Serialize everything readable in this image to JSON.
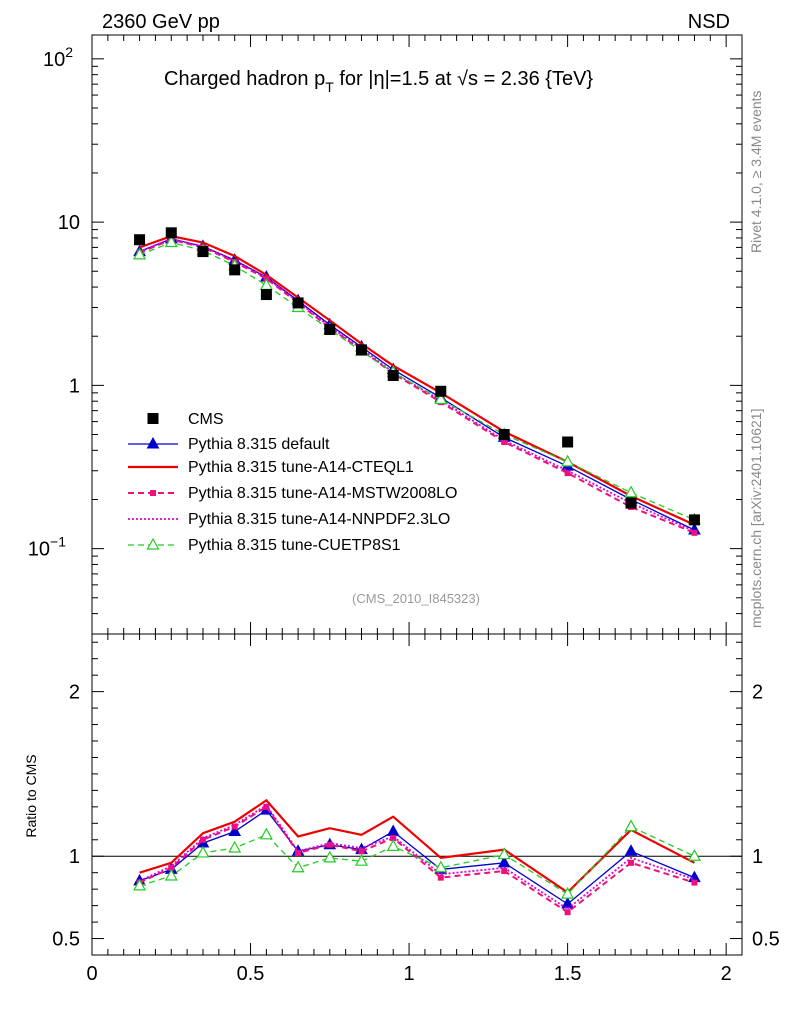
{
  "header": {
    "left": "2360 GeV pp",
    "right": "NSD"
  },
  "side_labels": {
    "rivet": "Rivet 4.1.0, ≥ 3.4M events",
    "mcplots": "mcplots.cern.ch [arXiv:2401.10621]"
  },
  "colors": {
    "data": "#000000",
    "default": "#0000cc",
    "cteql1": "#ee0000",
    "mstw": "#ee1177",
    "nnpdf": "#dd00dd",
    "cuetp8s1": "#22cc22"
  },
  "chart_data": {
    "type": "line",
    "title_parts": [
      "Charged hadron p",
      "T",
      " for |η|=1.5 at √s = 2.36 {TeV}"
    ],
    "analysis_id": "(CMS_2010_I845323)",
    "ylabel_ratio": "Ratio to CMS",
    "x": [
      0.15,
      0.25,
      0.35,
      0.45,
      0.55,
      0.65,
      0.75,
      0.85,
      0.95,
      1.1,
      1.3,
      1.5,
      1.7,
      1.9
    ],
    "xlim": [
      0,
      2.05
    ],
    "ylim_main": [
      0.03,
      140
    ],
    "ylim_ratio": [
      0.4,
      2.35
    ],
    "x_ticks": [
      {
        "v": 0,
        "label": "0"
      },
      {
        "v": 0.5,
        "label": "0.5"
      },
      {
        "v": 1,
        "label": "1"
      },
      {
        "v": 1.5,
        "label": "1.5"
      },
      {
        "v": 2,
        "label": "2"
      }
    ],
    "y_ticks_main": [
      {
        "v": 0.1,
        "base": "10",
        "exp": "−1"
      },
      {
        "v": 1,
        "base": "1",
        "exp": ""
      },
      {
        "v": 10,
        "base": "10",
        "exp": ""
      },
      {
        "v": 100,
        "base": "10",
        "exp": "2"
      }
    ],
    "y_ticks_ratio": [
      {
        "v": 0.5,
        "label": "0.5"
      },
      {
        "v": 1,
        "label": "1"
      },
      {
        "v": 2,
        "label": "2"
      }
    ],
    "data": {
      "name": "CMS",
      "values": [
        7.8,
        8.6,
        6.6,
        5.1,
        3.6,
        3.2,
        2.2,
        1.65,
        1.15,
        0.92,
        0.5,
        0.45,
        0.19,
        0.15
      ]
    },
    "series": [
      {
        "key": "default",
        "name": "Pythia 8.315 default",
        "style": "solid",
        "width": 1.3,
        "marker": "tri-filled",
        "values": [
          6.6,
          7.9,
          7.1,
          5.85,
          4.6,
          3.3,
          2.35,
          1.72,
          1.25,
          0.84,
          0.48,
          0.32,
          0.2,
          0.13
        ],
        "ratio": [
          0.85,
          0.92,
          1.08,
          1.15,
          1.28,
          1.03,
          1.07,
          1.04,
          1.15,
          0.92,
          0.96,
          0.71,
          1.03,
          0.87
        ]
      },
      {
        "key": "cteql1",
        "name": "Pythia 8.315 tune-A14-CTEQL1",
        "style": "solid",
        "width": 2.2,
        "marker": "none",
        "values": [
          7.0,
          8.2,
          7.5,
          6.2,
          4.75,
          3.45,
          2.5,
          1.8,
          1.32,
          0.9,
          0.52,
          0.34,
          0.21,
          0.14
        ],
        "ratio": [
          0.9,
          0.96,
          1.14,
          1.21,
          1.34,
          1.12,
          1.17,
          1.13,
          1.24,
          0.99,
          1.04,
          0.78,
          1.16,
          0.96
        ]
      },
      {
        "key": "mstw",
        "name": "Pythia 8.315 tune-A14-MSTW2008LO",
        "style": "dash",
        "width": 2.0,
        "marker": "square-small",
        "values": [
          6.5,
          7.8,
          7.0,
          5.7,
          4.5,
          3.2,
          2.25,
          1.65,
          1.18,
          0.79,
          0.45,
          0.29,
          0.18,
          0.125
        ],
        "ratio": [
          0.84,
          0.93,
          1.1,
          1.18,
          1.3,
          1.02,
          1.07,
          1.03,
          1.11,
          0.87,
          0.91,
          0.66,
          0.96,
          0.84
        ]
      },
      {
        "key": "nnpdf",
        "name": "Pythia 8.315 tune-A14-NNPDF2.3LO",
        "style": "dot",
        "width": 1.8,
        "marker": "none",
        "values": [
          6.6,
          7.9,
          7.05,
          5.8,
          4.55,
          3.25,
          2.28,
          1.68,
          1.2,
          0.81,
          0.46,
          0.3,
          0.19,
          0.128
        ],
        "ratio": [
          0.85,
          0.94,
          1.11,
          1.19,
          1.31,
          1.03,
          1.08,
          1.05,
          1.12,
          0.89,
          0.93,
          0.68,
          0.99,
          0.86
        ]
      },
      {
        "key": "cuetp8s1",
        "name": "Pythia 8.315 tune-CUETP8S1",
        "style": "dash",
        "width": 1.3,
        "marker": "tri-open",
        "values": [
          6.3,
          7.5,
          6.7,
          5.4,
          4.1,
          3.0,
          2.2,
          1.62,
          1.2,
          0.82,
          0.5,
          0.34,
          0.22,
          0.15
        ],
        "ratio": [
          0.82,
          0.88,
          1.02,
          1.05,
          1.13,
          0.93,
          0.99,
          0.97,
          1.06,
          0.93,
          1.01,
          0.77,
          1.18,
          1.0
        ]
      }
    ]
  }
}
